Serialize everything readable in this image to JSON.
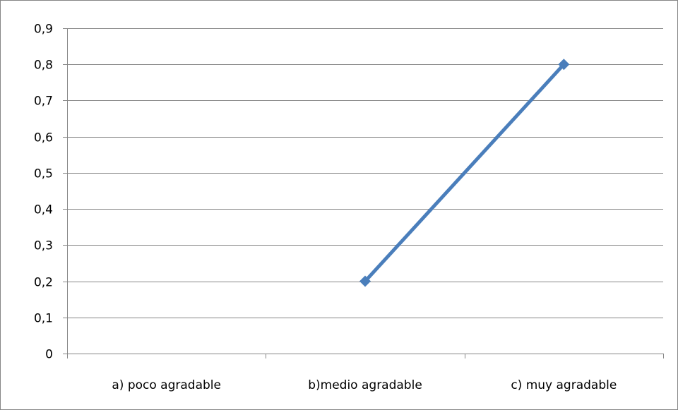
{
  "chart_data": {
    "type": "line",
    "title": "",
    "xlabel": "",
    "ylabel": "",
    "categories": [
      "a) poco agradable",
      "b)medio agradable",
      "c) muy agradable"
    ],
    "series": [
      {
        "values": [
          null,
          0.2,
          0.8
        ],
        "color": "#4a7ebb",
        "marker": "diamond"
      }
    ],
    "ylim": [
      0,
      0.9
    ],
    "ytick_step": 0.1,
    "yticks": [
      "0",
      "0,1",
      "0,2",
      "0,3",
      "0,4",
      "0,5",
      "0,6",
      "0,7",
      "0,8",
      "0,9"
    ],
    "grid": true,
    "legend": "none",
    "colors": {
      "gridline": "#868686",
      "axis": "#868686",
      "series": "#4a7ebb"
    }
  }
}
